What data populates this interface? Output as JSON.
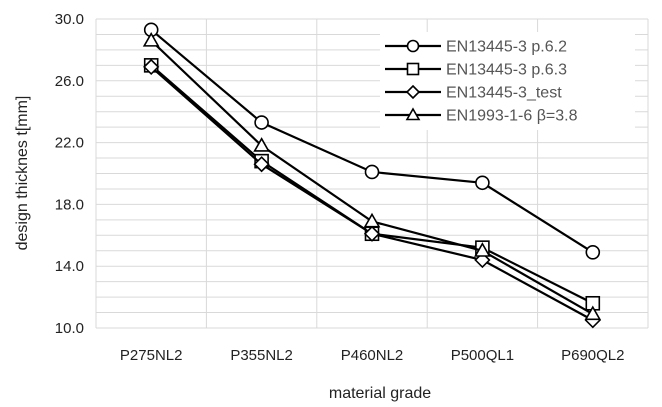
{
  "chart_data": {
    "type": "line",
    "title": "",
    "xlabel": "material grade",
    "ylabel": "design thicknes t[mm]",
    "categories": [
      "P275NL2",
      "P355NL2",
      "P460NL2",
      "P500QL1",
      "P690QL2"
    ],
    "ylim": [
      10.0,
      30.0
    ],
    "yticks": [
      "10.0",
      "14.0",
      "18.0",
      "22.0",
      "26.0",
      "30.0"
    ],
    "grid": true,
    "legend_position": "top-right",
    "series": [
      {
        "name": "EN13445-3 p.6.2",
        "marker": "circle",
        "values": [
          29.3,
          23.3,
          20.1,
          19.4,
          14.9
        ]
      },
      {
        "name": "EN13445-3 p.6.3",
        "marker": "square",
        "values": [
          27.0,
          20.8,
          16.1,
          15.2,
          11.6
        ]
      },
      {
        "name": "EN13445-3_test",
        "marker": "diamond",
        "values": [
          26.9,
          20.6,
          16.1,
          14.4,
          10.5
        ]
      },
      {
        "name": "EN1993-1-6 β=3.8",
        "marker": "triangle",
        "values": [
          28.6,
          21.8,
          16.9,
          15.0,
          10.9
        ]
      }
    ],
    "line_color": "#000000",
    "marker_fill": "#ffffff"
  }
}
